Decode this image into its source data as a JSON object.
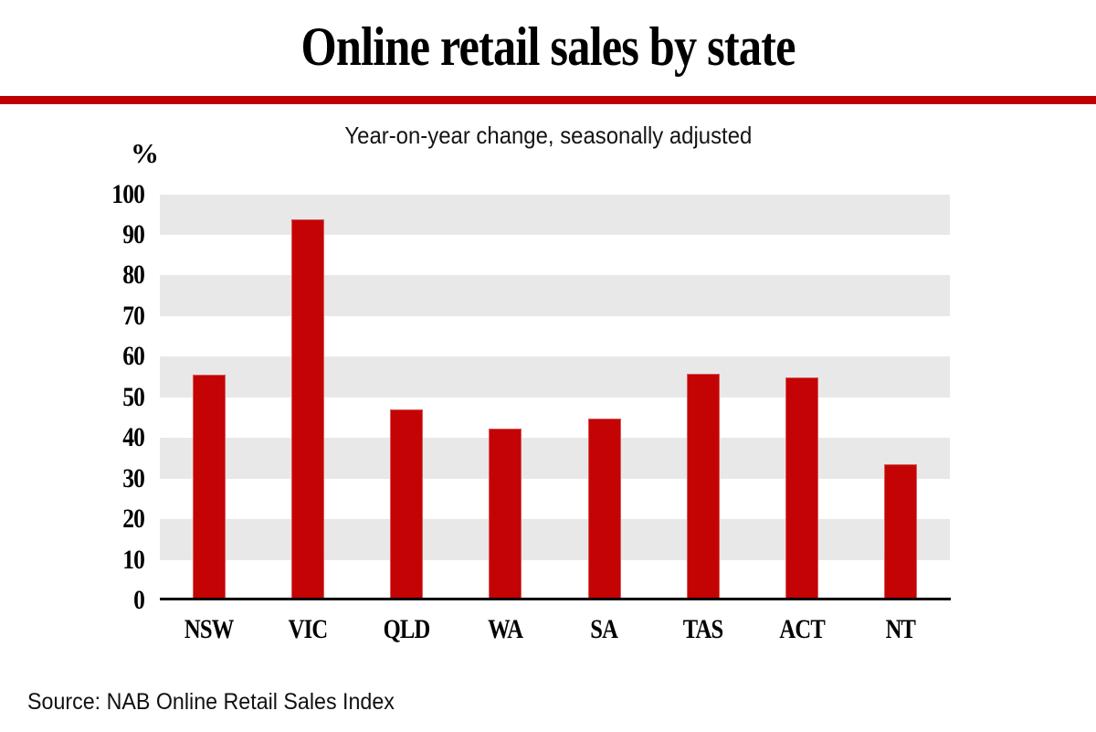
{
  "header": {
    "title": "Online retail sales by state",
    "accent_color": "#c00000"
  },
  "chart_data": {
    "type": "bar",
    "title": "Online retail sales by state",
    "subtitle": "Year-on-year change, seasonally adjusted",
    "unit_label": "%",
    "categories": [
      "NSW",
      "VIC",
      "QLD",
      "WA",
      "SA",
      "TAS",
      "ACT",
      "NT"
    ],
    "values": [
      55.6,
      93.8,
      47.0,
      42.3,
      44.8,
      55.7,
      54.9,
      33.5
    ],
    "xlabel": "",
    "ylabel": "%",
    "ylim": [
      0,
      100
    ],
    "yticks": [
      0,
      10,
      20,
      30,
      40,
      50,
      60,
      70,
      80,
      90,
      100
    ],
    "grid": "alternating-horizontal-bands",
    "band_color": "#e8e8e8",
    "bar_color": "#c40404",
    "bar_edge_color": "#d75b5b",
    "axis_line_color": "#000000",
    "legend_position": "none"
  },
  "footer": {
    "source": "Source: NAB Online Retail Sales Index"
  }
}
